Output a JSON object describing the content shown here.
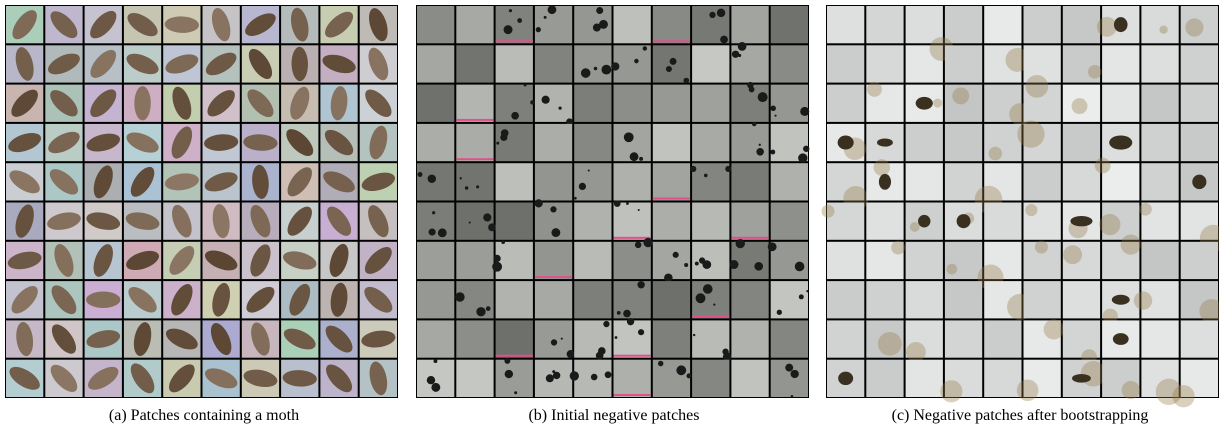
{
  "figure": {
    "panels": [
      {
        "caption": "(a) Patches containing a moth"
      },
      {
        "caption": "(b) Initial negative patches"
      },
      {
        "caption": "(c) Negative patches after bootstrapping"
      }
    ]
  }
}
